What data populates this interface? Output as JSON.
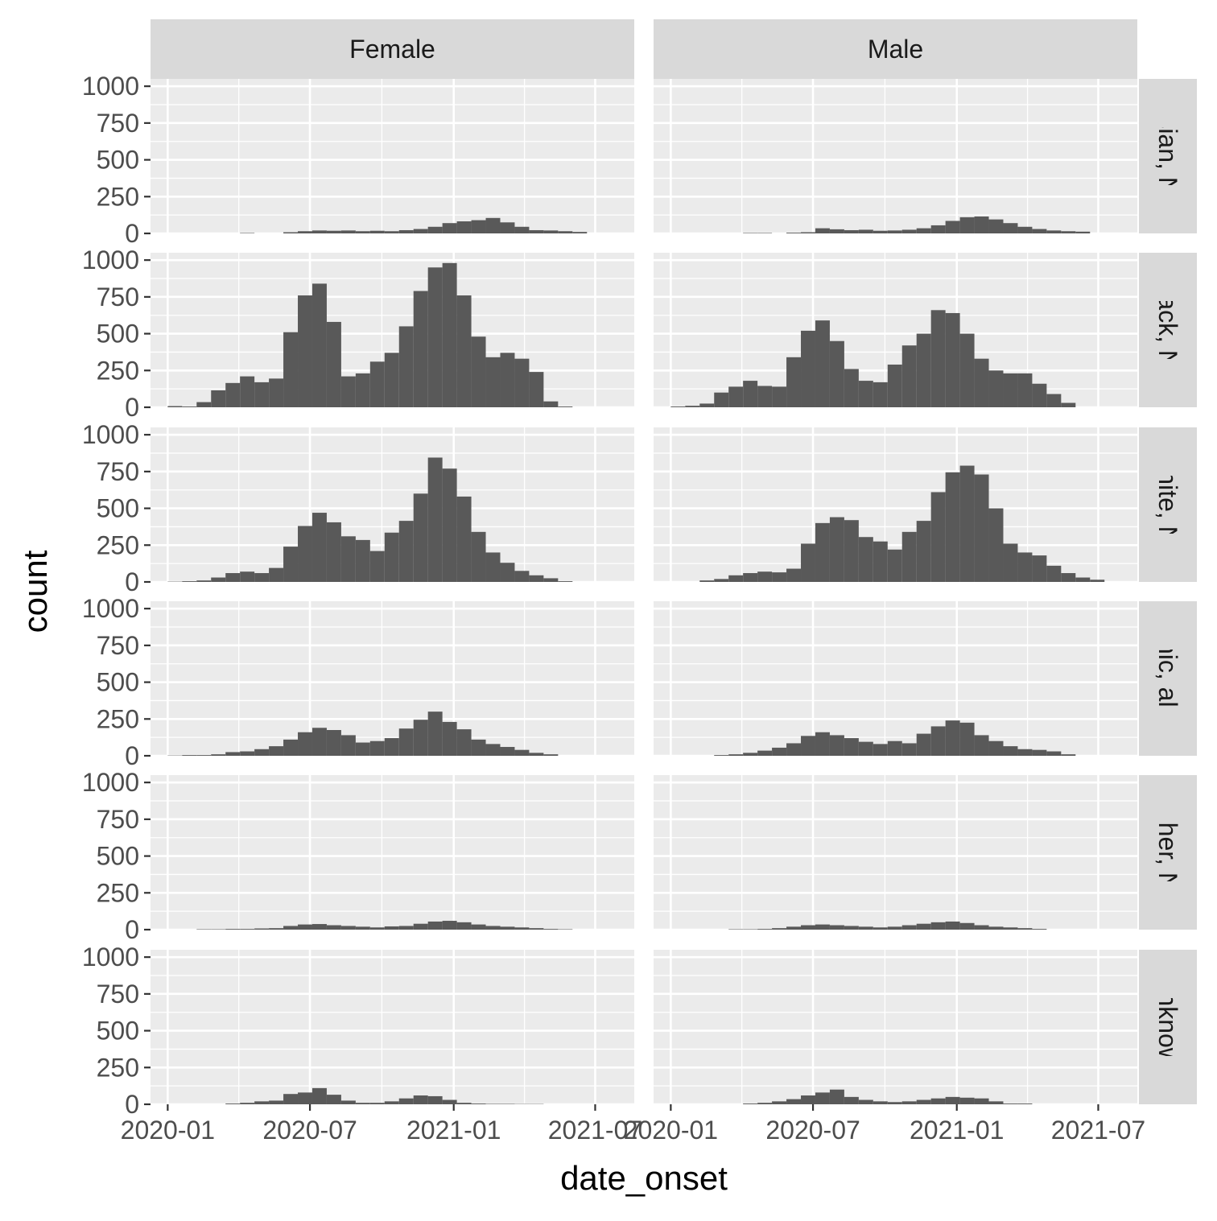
{
  "chart_data": {
    "type": "bar",
    "subtype": "faceted histogram",
    "xlabel": "date_onset",
    "ylabel": "count",
    "x_tick_labels": [
      "2020-01",
      "2020-07",
      "2021-01",
      "2021-07"
    ],
    "x_tick_dates": [
      "2020-01-01",
      "2020-07-01",
      "2021-01-01",
      "2021-07-01"
    ],
    "xlim": [
      "2019-12-10",
      "2021-08-20"
    ],
    "y_tick_labels": [
      "0",
      "250",
      "500",
      "750",
      "1000"
    ],
    "ylim": [
      0,
      1050
    ],
    "bin_width_days": 18.5,
    "first_bin_start": "2020-01-01",
    "columns": [
      "Female",
      "Male"
    ],
    "rows": [
      "Asian, NH",
      "Black, NH",
      "White, NH",
      "Hispanic, all races",
      "Other, NH",
      "Unknown"
    ],
    "grid": true,
    "panels": [
      {
        "row": "Asian, NH",
        "column": "Female",
        "values": [
          0,
          0,
          0,
          0,
          0,
          3,
          0,
          0,
          8,
          15,
          20,
          18,
          20,
          15,
          18,
          15,
          22,
          30,
          45,
          70,
          82,
          90,
          105,
          75,
          45,
          22,
          20,
          15,
          10,
          0,
          0
        ]
      },
      {
        "row": "Asian, NH",
        "column": "Male",
        "values": [
          0,
          0,
          0,
          0,
          0,
          3,
          3,
          0,
          5,
          8,
          35,
          28,
          22,
          25,
          18,
          20,
          25,
          35,
          55,
          85,
          110,
          115,
          95,
          70,
          45,
          30,
          20,
          15,
          12,
          0,
          0
        ]
      },
      {
        "row": "Black, NH",
        "column": "Female",
        "values": [
          8,
          5,
          35,
          115,
          165,
          210,
          170,
          195,
          510,
          760,
          840,
          580,
          210,
          230,
          310,
          370,
          550,
          790,
          950,
          980,
          760,
          480,
          340,
          370,
          330,
          240,
          40,
          5,
          0,
          0,
          0
        ]
      },
      {
        "row": "Black, NH",
        "column": "Male",
        "values": [
          5,
          10,
          25,
          100,
          140,
          180,
          145,
          140,
          340,
          520,
          590,
          450,
          260,
          180,
          170,
          290,
          420,
          500,
          660,
          640,
          500,
          330,
          250,
          230,
          230,
          160,
          90,
          30,
          0,
          0,
          0
        ]
      },
      {
        "row": "White, NH",
        "column": "Female",
        "values": [
          2,
          5,
          10,
          30,
          60,
          70,
          60,
          95,
          240,
          380,
          470,
          405,
          310,
          285,
          210,
          335,
          415,
          600,
          845,
          770,
          580,
          340,
          200,
          130,
          75,
          45,
          25,
          5,
          0,
          0,
          0
        ]
      },
      {
        "row": "White, NH",
        "column": "Male",
        "values": [
          0,
          0,
          10,
          20,
          45,
          60,
          70,
          65,
          90,
          260,
          400,
          440,
          420,
          305,
          275,
          220,
          340,
          415,
          610,
          745,
          790,
          730,
          500,
          260,
          200,
          180,
          110,
          60,
          30,
          15,
          0
        ]
      },
      {
        "row": "Hispanic, all races",
        "column": "Female",
        "values": [
          2,
          5,
          5,
          10,
          25,
          30,
          45,
          65,
          110,
          160,
          190,
          175,
          140,
          90,
          100,
          120,
          185,
          245,
          300,
          230,
          180,
          110,
          80,
          60,
          40,
          20,
          10,
          0,
          0,
          0,
          0
        ]
      },
      {
        "row": "Hispanic, all races",
        "column": "Male",
        "values": [
          0,
          0,
          0,
          5,
          10,
          20,
          35,
          55,
          85,
          135,
          160,
          140,
          120,
          95,
          80,
          100,
          85,
          150,
          200,
          240,
          225,
          140,
          100,
          65,
          45,
          40,
          30,
          10,
          0,
          0,
          0
        ]
      },
      {
        "row": "Other, NH",
        "column": "Female",
        "values": [
          0,
          0,
          3,
          3,
          5,
          5,
          8,
          10,
          25,
          35,
          38,
          30,
          25,
          20,
          15,
          22,
          25,
          40,
          55,
          60,
          50,
          35,
          25,
          20,
          15,
          10,
          5,
          3,
          0,
          0,
          0
        ]
      },
      {
        "row": "Other, NH",
        "column": "Male",
        "values": [
          0,
          0,
          0,
          0,
          3,
          3,
          5,
          10,
          20,
          30,
          35,
          30,
          25,
          20,
          15,
          20,
          30,
          40,
          50,
          55,
          45,
          30,
          20,
          15,
          10,
          5,
          0,
          0,
          0,
          0,
          0
        ]
      },
      {
        "row": "Unknown",
        "column": "Female",
        "values": [
          0,
          0,
          0,
          0,
          5,
          10,
          20,
          25,
          70,
          80,
          110,
          65,
          25,
          10,
          10,
          20,
          40,
          60,
          55,
          30,
          10,
          5,
          3,
          3,
          2,
          2,
          0,
          0,
          0,
          0,
          0
        ]
      },
      {
        "row": "Unknown",
        "column": "Male",
        "values": [
          0,
          0,
          0,
          0,
          0,
          5,
          10,
          20,
          35,
          60,
          80,
          100,
          50,
          30,
          20,
          15,
          20,
          30,
          40,
          50,
          45,
          40,
          20,
          5,
          5,
          0,
          0,
          0,
          0,
          0,
          0
        ]
      }
    ],
    "colors": {
      "panel_background": "#ebebeb",
      "gridline": "#ffffff",
      "strip_background": "#d9d9d9",
      "bar_fill": "#595959",
      "tick_mark": "#333333",
      "tick_label": "#4d4d4d",
      "strip_text": "#1a1a1a",
      "axis_title": "#000000"
    }
  }
}
